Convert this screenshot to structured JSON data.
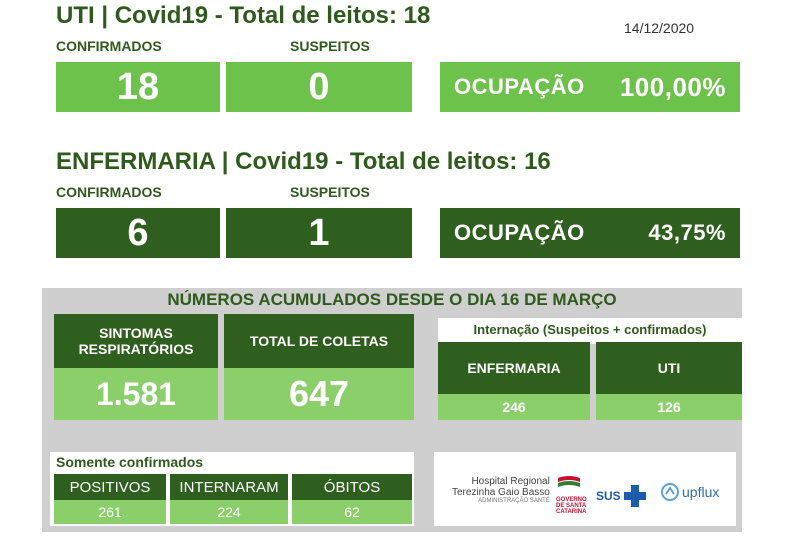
{
  "uti": {
    "title": "UTI | Covid19 - Total de leitos: 18",
    "date": "14/12/2020",
    "confirmados_label": "CONFIRMADOS",
    "suspeitos_label": "SUSPEITOS",
    "confirmados": "18",
    "suspeitos": "0",
    "ocupacao_label": "OCUPAÇÃO",
    "ocupacao": "100,00%"
  },
  "enfermaria": {
    "title": "ENFERMARIA | Covid19 - Total de leitos: 16",
    "confirmados_label": "CONFIRMADOS",
    "suspeitos_label": "SUSPEITOS",
    "confirmados": "6",
    "suspeitos": "1",
    "ocupacao_label": "OCUPAÇÃO",
    "ocupacao": "43,75%"
  },
  "acumulados": {
    "title": "NÚMEROS ACUMULADOS DESDE O DIA 16 DE MARÇO",
    "sintomas_label_1": "SINTOMAS",
    "sintomas_label_2": "RESPIRATÓRIOS",
    "sintomas": "1.581",
    "coletas_label": "TOTAL DE COLETAS",
    "coletas": "647",
    "internacao_title": "Internação (Suspeitos + confirmados)",
    "enfermaria_label": "ENFERMARIA",
    "enfermaria": "246",
    "uti_label": "UTI",
    "uti": "126"
  },
  "confirmados": {
    "title": "Somente confirmados",
    "positivos_label": "POSITIVOS",
    "positivos": "261",
    "internaram_label": "INTERNARAM",
    "internaram": "224",
    "obitos_label": "ÓBITOS",
    "obitos": "62"
  },
  "logos": {
    "hospital_1": "Hospital Regional",
    "hospital_2": "Terezinha Gaio Basso",
    "hospital_3": "ADMINISTRAÇÃO SANTÉ",
    "governo_1": "GOVERNO",
    "governo_2": "DE SANTA",
    "governo_3": "CATARINA",
    "sus": "SUS",
    "upflux": "upflux"
  },
  "colors": {
    "light_green": "#6cc24a",
    "dark_green": "#2f5f1e",
    "pale_green": "#8bcf6a",
    "grey": "#cfcfcf"
  }
}
